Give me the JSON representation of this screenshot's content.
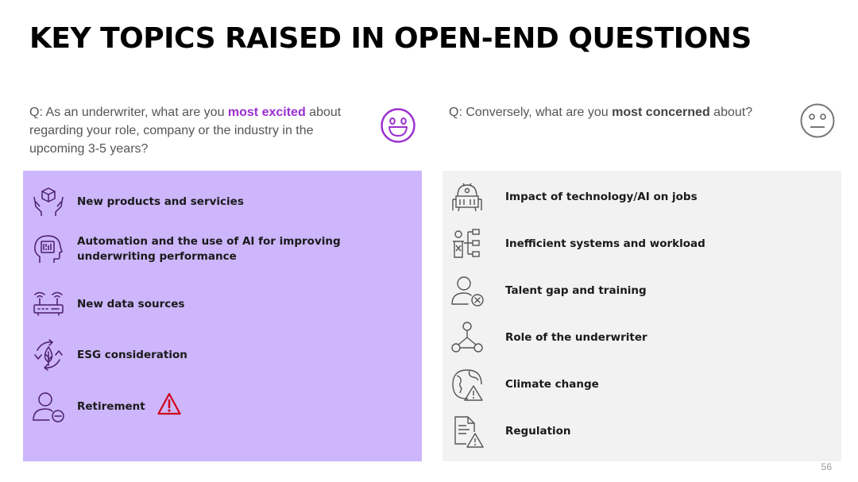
{
  "title": "KEY TOPICS RAISED IN OPEN-END QUESTIONS",
  "excited": {
    "question_prefix": "Q: As an underwriter, what are you ",
    "question_emphasis": "most excited",
    "question_suffix": " about regarding your role, company or the industry in the upcoming 3-5 years?",
    "face_icon": "happy-face-icon",
    "accent": "#9b30d0",
    "panel_color": "#cdb6fb",
    "items": [
      {
        "label": "New products and servicies",
        "icon": "product-hands-icon"
      },
      {
        "label": "Automation and the use of AI for improving underwriting performance",
        "icon": "ai-head-icon"
      },
      {
        "label": "New data sources",
        "icon": "router-icon"
      },
      {
        "label": "ESG consideration",
        "icon": "leaf-cycle-icon"
      },
      {
        "label": "Retirement",
        "icon": "person-minus-icon"
      }
    ],
    "warning_icon": "warning-icon"
  },
  "concerned": {
    "question_prefix": "Q: Conversely, what are you ",
    "question_emphasis": "most concerned",
    "question_suffix": " about?",
    "face_icon": "neutral-face-icon",
    "panel_color": "#f2f2f2",
    "items": [
      {
        "label": "Impact of technology/AI on jobs",
        "icon": "robot-icon"
      },
      {
        "label": "Inefficient systems and workload",
        "icon": "workflow-icon"
      },
      {
        "label": "Talent gap and training",
        "icon": "person-x-icon"
      },
      {
        "label": "Role of the underwriter",
        "icon": "network-icon"
      },
      {
        "label": "Climate change",
        "icon": "globe-warning-icon"
      },
      {
        "label": "Regulation",
        "icon": "document-warning-icon"
      }
    ]
  },
  "page_number": "56"
}
